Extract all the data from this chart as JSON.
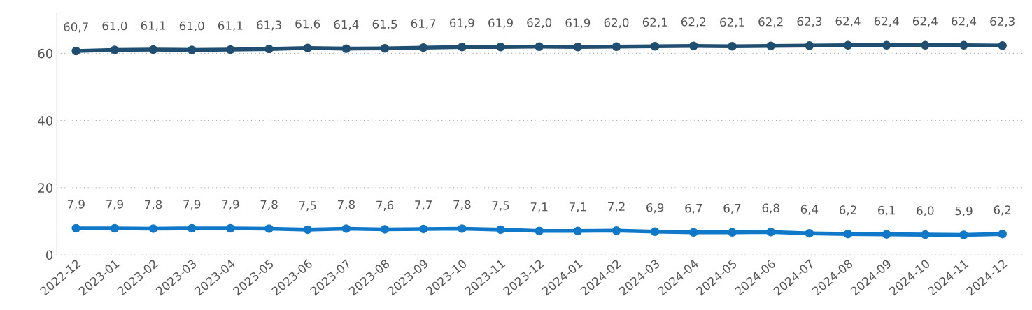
{
  "chart_data": {
    "type": "line",
    "categories": [
      "2022-12",
      "2023-01",
      "2023-02",
      "2023-03",
      "2023-04",
      "2023-05",
      "2023-06",
      "2023-07",
      "2023-08",
      "2023-09",
      "2023-10",
      "2023-11",
      "2023-12",
      "2024-01",
      "2024-02",
      "2024-03",
      "2024-04",
      "2024-05",
      "2024-06",
      "2024-07",
      "2024-08",
      "2024-09",
      "2024-10",
      "2024-11",
      "2024-12"
    ],
    "series": [
      {
        "color": "#1f4e70",
        "values": [
          60.7,
          61.0,
          61.1,
          61.0,
          61.1,
          61.3,
          61.6,
          61.4,
          61.5,
          61.7,
          61.9,
          61.9,
          62.0,
          61.9,
          62.0,
          62.1,
          62.2,
          62.1,
          62.2,
          62.3,
          62.4,
          62.4,
          62.4,
          62.4,
          62.3
        ],
        "value_labels": [
          "60,7",
          "61,0",
          "61,1",
          "61,0",
          "61,1",
          "61,3",
          "61,6",
          "61,4",
          "61,5",
          "61,7",
          "61,9",
          "61,9",
          "62,0",
          "61,9",
          "62,0",
          "62,1",
          "62,2",
          "62,1",
          "62,2",
          "62,3",
          "62,4",
          "62,4",
          "62,4",
          "62,4",
          "62,3"
        ]
      },
      {
        "color": "#0f78c8",
        "values": [
          7.9,
          7.9,
          7.8,
          7.9,
          7.9,
          7.8,
          7.5,
          7.8,
          7.6,
          7.7,
          7.8,
          7.5,
          7.1,
          7.1,
          7.2,
          6.9,
          6.7,
          6.7,
          6.8,
          6.4,
          6.2,
          6.1,
          6.0,
          5.9,
          6.2
        ],
        "value_labels": [
          "7,9",
          "7,9",
          "7,8",
          "7,9",
          "7,9",
          "7,8",
          "7,5",
          "7,8",
          "7,6",
          "7,7",
          "7,8",
          "7,5",
          "7,1",
          "7,1",
          "7,2",
          "6,9",
          "6,7",
          "6,7",
          "6,8",
          "6,4",
          "6,2",
          "6,1",
          "6,0",
          "5,9",
          "6,2"
        ]
      }
    ],
    "ylim": [
      0,
      72
    ],
    "yticks": [
      0,
      20,
      40,
      60
    ],
    "grid": "y",
    "marker": "circle",
    "line_style": "solid"
  }
}
